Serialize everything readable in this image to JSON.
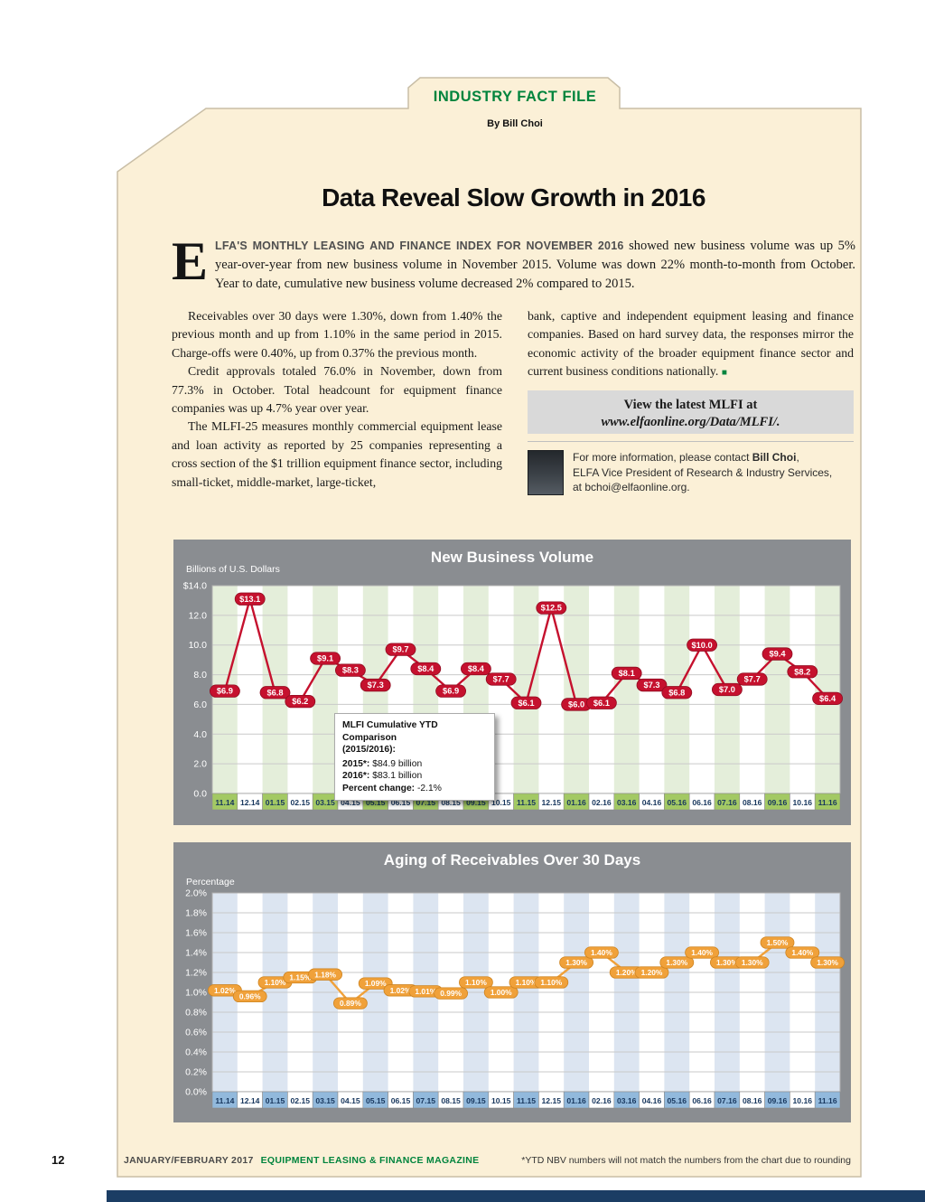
{
  "header": {
    "tab_title": "INDUSTRY FACT FILE",
    "byline": "By Bill Choi",
    "title": "Data Reveal Slow Growth in 2016"
  },
  "article": {
    "lead_dropcap": "E",
    "lead_caps": "LFA'S MONTHLY LEASING AND FINANCE INDEX FOR NOVEMBER 2016",
    "lead_rest": " showed new business volume was up 5% year-over-year from new business volume in November 2015. Volume was down 22% month-to-month from October. Year to date, cumulative new business volume decreased 2% compared to 2015.",
    "col1_p1": "Receivables over 30 days were 1.30%, down from 1.40% the previous month and up from 1.10% in the same period in 2015. Charge-offs were 0.40%, up from 0.37% the previous month.",
    "col1_p2": "Credit approvals totaled 76.0% in November, down from 77.3% in October. Total headcount for equipment finance companies was up 4.7% year over year.",
    "col1_p3": "The MLFI-25 measures monthly commercial equipment lease and loan activity as reported by 25 companies representing a cross section of the $1 trillion equipment finance sector, including small-ticket, middle-market, large-ticket,",
    "col2_p1": "bank, captive and independent equipment leasing and finance companies. Based on hard survey data, the responses mirror the economic activity of the broader equipment finance sector and current business conditions nationally.",
    "end_mark": "■",
    "callout_line1": "View the latest MLFI at",
    "callout_line2": "www.elfaonline.org/Data/MLFI/.",
    "contact_pre": "For more information, please contact ",
    "contact_name": "Bill Choi",
    "contact_post": ",",
    "contact_line2": "ELFA Vice President of Research & Industry Services,",
    "contact_line3": "at bchoi@elfaonline.org."
  },
  "footer": {
    "page_number": "12",
    "issue": "JANUARY/FEBRUARY 2017",
    "magazine": "EQUIPMENT LEASING & FINANCE MAGAZINE",
    "note": "*YTD NBV numbers will not match the numbers from the chart due to rounding"
  },
  "colors": {
    "brand_green": "#00843D",
    "cream_background": "#FBF0D7",
    "chart_panel_gray": "#8A8D91",
    "navy_bar": "#1B3D64",
    "nbv_red": "#C5112E",
    "receivables_orange": "#F0A13A"
  },
  "chart_data": [
    {
      "type": "line",
      "title": "New Business Volume",
      "ylabel": "Billions of U.S. Dollars",
      "categories": [
        "11.14",
        "12.14",
        "01.15",
        "02.15",
        "03.15",
        "04.15",
        "05.15",
        "06.15",
        "07.15",
        "08.15",
        "09.15",
        "10.15",
        "11.15",
        "12.15",
        "01.16",
        "02.16",
        "03.16",
        "04.16",
        "05.16",
        "06.16",
        "07.16",
        "08.16",
        "09.16",
        "10.16",
        "11.16"
      ],
      "values": [
        6.9,
        13.1,
        6.8,
        6.2,
        9.1,
        8.3,
        7.3,
        9.7,
        8.4,
        6.9,
        8.4,
        7.7,
        6.1,
        12.5,
        6.0,
        6.1,
        8.1,
        7.3,
        6.8,
        10.0,
        7.0,
        7.7,
        9.4,
        8.2,
        6.4
      ],
      "point_labels": [
        "$6.9",
        "$13.1",
        "$6.8",
        "$6.2",
        "$9.1",
        "$8.3",
        "$7.3",
        "$9.7",
        "$8.4",
        "$6.9",
        "$8.4",
        "$7.7",
        "$6.1",
        "$12.5",
        "$6.0",
        "$6.1",
        "$8.1",
        "$7.3",
        "$6.8",
        "$10.0",
        "$7.0",
        "$7.7",
        "$9.4",
        "$8.2",
        "$6.4"
      ],
      "ylim": [
        0,
        14
      ],
      "ytick_labels": [
        "$14.0",
        "12.0",
        "10.0",
        "8.0",
        "6.0",
        "4.0",
        "2.0",
        "0.0"
      ],
      "grid": true,
      "legend": "none",
      "line_color": "#C5112E",
      "label_stroke": "#8F0C20",
      "stripe_color": "#E4EEDA",
      "xband_color": "#A3C964",
      "annotation": {
        "title": "MLFI Cumulative YTD Comparison",
        "subtitle": "(2015/2016):",
        "rows": [
          {
            "label": "2015*:",
            "value": "$84.9 billion"
          },
          {
            "label": "2016*:",
            "value": "$83.1 billion"
          }
        ],
        "change_label": "Percent change:",
        "change_value": "-2.1%"
      }
    },
    {
      "type": "line",
      "title": "Aging of Receivables Over 30 Days",
      "ylabel": "Percentage",
      "categories": [
        "11.14",
        "12.14",
        "01.15",
        "02.15",
        "03.15",
        "04.15",
        "05.15",
        "06.15",
        "07.15",
        "08.15",
        "09.15",
        "10.15",
        "11.15",
        "12.15",
        "01.16",
        "02.16",
        "03.16",
        "04.16",
        "05.16",
        "06.16",
        "07.16",
        "08.16",
        "09.16",
        "10.16",
        "11.16"
      ],
      "values": [
        1.02,
        0.96,
        1.1,
        1.15,
        1.18,
        0.89,
        1.09,
        1.02,
        1.01,
        0.99,
        1.1,
        1.0,
        1.1,
        1.1,
        1.3,
        1.4,
        1.2,
        1.2,
        1.3,
        1.4,
        1.3,
        1.3,
        1.5,
        1.4,
        1.3
      ],
      "point_labels": [
        "1.02%",
        "0.96%",
        "1.10%",
        "1.15%",
        "1.18%",
        "0.89%",
        "1.09%",
        "1.02%",
        "1.01%",
        "0.99%",
        "1.10%",
        "1.00%",
        "1.10%",
        "1.10%",
        "1.30%",
        "1.40%",
        "1.20%",
        "1.20%",
        "1.30%",
        "1.40%",
        "1.30%",
        "1.30%",
        "1.50%",
        "1.40%",
        "1.30%"
      ],
      "ylim": [
        0,
        2
      ],
      "ytick_labels": [
        "2.0%",
        "1.8%",
        "1.6%",
        "1.4%",
        "1.2%",
        "1.0%",
        "0.8%",
        "0.6%",
        "0.4%",
        "0.2%",
        "0.0%"
      ],
      "grid": true,
      "legend": "none",
      "line_color": "#F0A13A",
      "label_stroke": "#CE8420",
      "stripe_color": "#DCE5F1",
      "xband_color": "#92B9DC",
      "annotation": null
    }
  ]
}
